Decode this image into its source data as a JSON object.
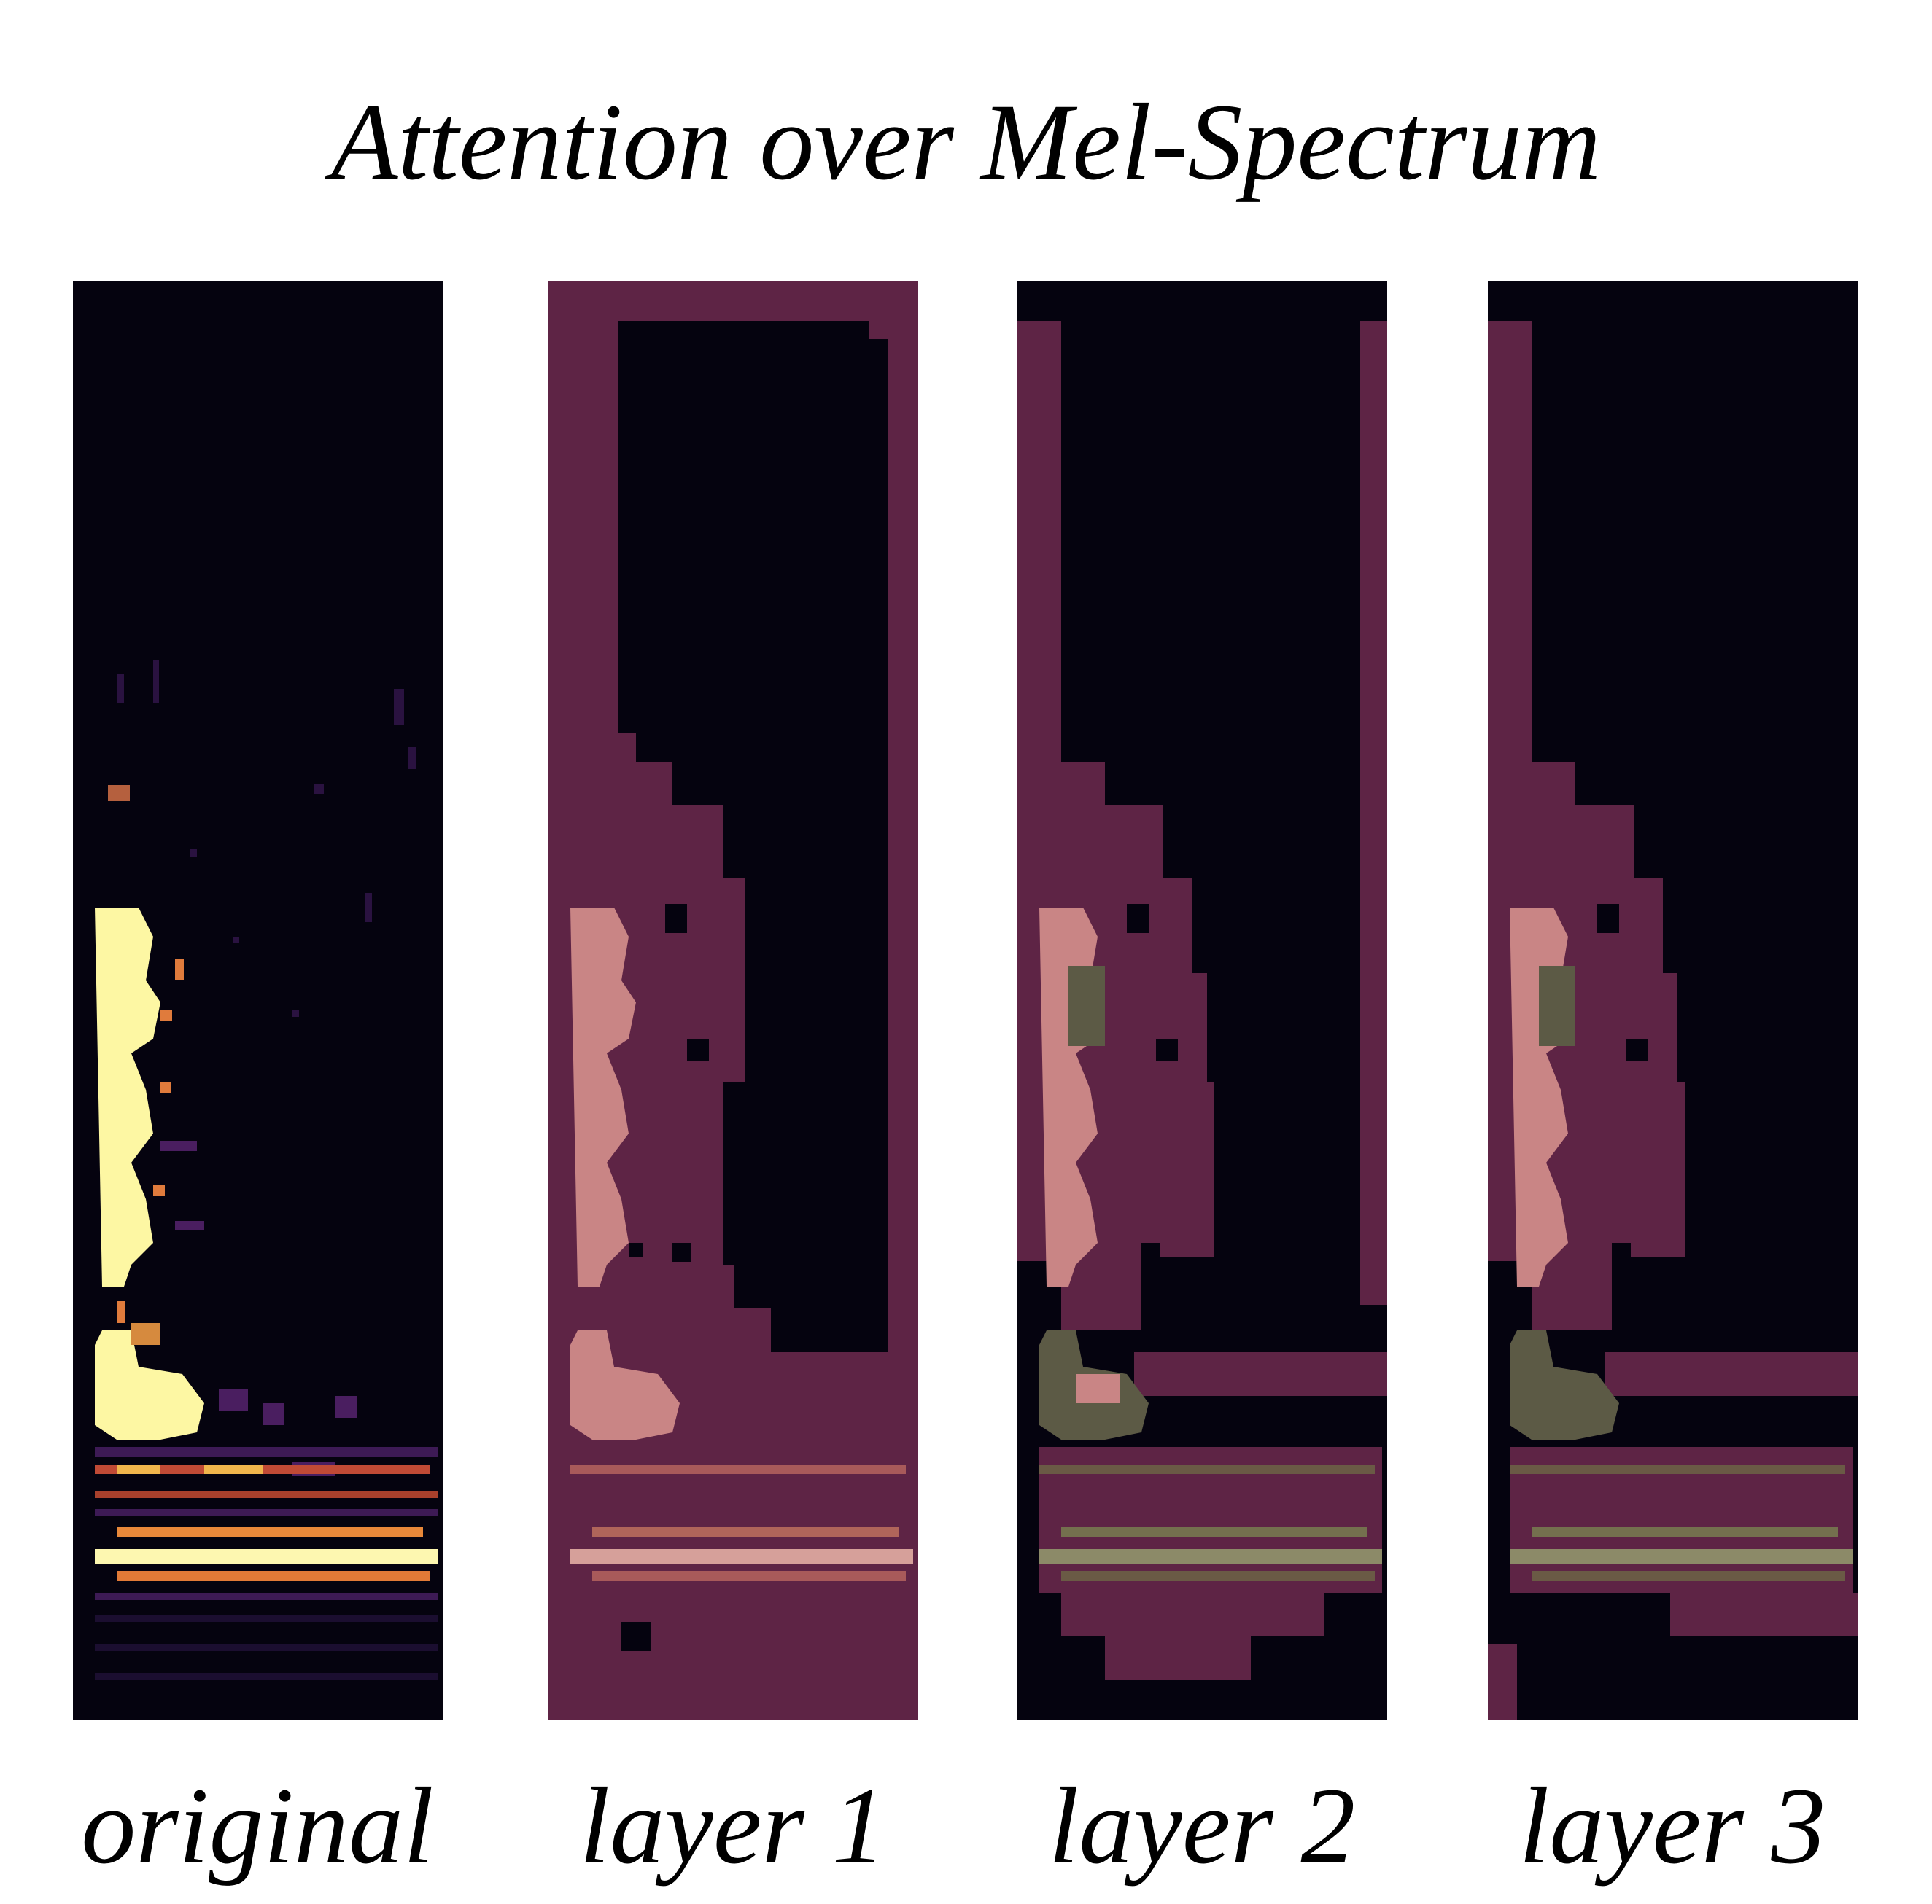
{
  "figure": {
    "title": "Attention over Mel-Spectrum"
  },
  "panels": [
    {
      "id": "original",
      "label": "original"
    },
    {
      "id": "layer-1",
      "label": "layer 1"
    },
    {
      "id": "layer-2",
      "label": "layer 2"
    },
    {
      "id": "layer-3",
      "label": "layer 3"
    }
  ],
  "colors": {
    "background_dark": "#05030f",
    "spectrum_hot": "#fdf6a0",
    "spectrum_mid": "#e8a24a",
    "spectrum_low": "#6a2a6b",
    "attention_mask": "#5e2445",
    "masked_highlight": "#c98585",
    "layer_overlap": "#5c5a45"
  }
}
